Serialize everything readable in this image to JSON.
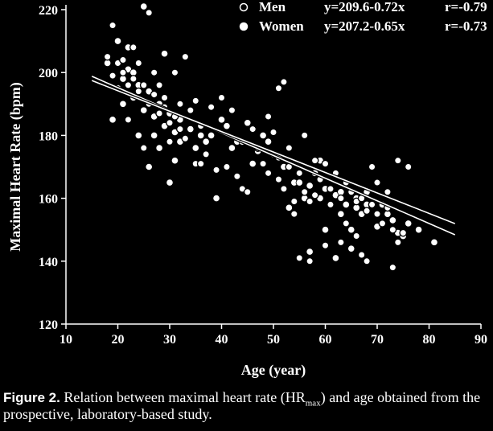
{
  "chart_data": {
    "type": "scatter",
    "xlabel": "Age (year)",
    "ylabel": "Maximal Heart Rate (bpm)",
    "xlim": [
      10,
      90
    ],
    "ylim": [
      120,
      220
    ],
    "xticks": [
      "10",
      "20",
      "30",
      "40",
      "50",
      "60",
      "70",
      "80",
      "90"
    ],
    "yticks": [
      "120",
      "140",
      "160",
      "180",
      "200",
      "220"
    ],
    "grid": false,
    "legend_position": "top-right",
    "legend": [
      {
        "name": "Men",
        "marker": "open-circle",
        "equation": "y=209.6-0.72x",
        "r": "r=-0.79"
      },
      {
        "name": "Women",
        "marker": "filled-circle",
        "equation": "y=207.2-0.65x",
        "r": "r=-0.73"
      }
    ],
    "regression_lines": [
      {
        "series": "Men",
        "intercept": 209.6,
        "slope": -0.72,
        "x_range": [
          15,
          85
        ]
      },
      {
        "series": "Women",
        "intercept": 207.2,
        "slope": -0.65,
        "x_range": [
          15,
          85
        ]
      }
    ],
    "series": [
      {
        "name": "Men",
        "points": [
          [
            18,
            205
          ],
          [
            19,
            199
          ],
          [
            20,
            203
          ],
          [
            21,
            200
          ],
          [
            22,
            196
          ],
          [
            23,
            198
          ],
          [
            24,
            194
          ],
          [
            25,
            196
          ],
          [
            26,
            190
          ],
          [
            26,
            219
          ],
          [
            27,
            193
          ],
          [
            28,
            187
          ],
          [
            29,
            189
          ],
          [
            30,
            184
          ],
          [
            31,
            186
          ],
          [
            32,
            182
          ],
          [
            19,
            215
          ],
          [
            24,
            203
          ],
          [
            33,
            205
          ],
          [
            34,
            188
          ],
          [
            35,
            191
          ],
          [
            36,
            183
          ],
          [
            38,
            189
          ],
          [
            40,
            192
          ],
          [
            42,
            188
          ],
          [
            44,
            163
          ],
          [
            45,
            162
          ],
          [
            47,
            176
          ],
          [
            48,
            171
          ],
          [
            49,
            168
          ],
          [
            50,
            181
          ],
          [
            51,
            166
          ],
          [
            52,
            163
          ],
          [
            53,
            170
          ],
          [
            54,
            159
          ],
          [
            55,
            168
          ],
          [
            56,
            162
          ],
          [
            57,
            159
          ],
          [
            58,
            172
          ],
          [
            59,
            166
          ],
          [
            60,
            171
          ],
          [
            61,
            163
          ],
          [
            62,
            168
          ],
          [
            63,
            160
          ],
          [
            64,
            165
          ],
          [
            65,
            162
          ],
          [
            66,
            159
          ],
          [
            67,
            160
          ],
          [
            67,
            142
          ],
          [
            68,
            156
          ],
          [
            69,
            158
          ],
          [
            70,
            155
          ],
          [
            71,
            152
          ],
          [
            72,
            157
          ],
          [
            73,
            150
          ],
          [
            73,
            138
          ],
          [
            74,
            146
          ],
          [
            75,
            149
          ],
          [
            55,
            141
          ],
          [
            57,
            140
          ],
          [
            60,
            145
          ],
          [
            63,
            146
          ],
          [
            68,
            140
          ],
          [
            54,
            155
          ],
          [
            53,
            176
          ],
          [
            51,
            195
          ],
          [
            52,
            197
          ],
          [
            49,
            186
          ],
          [
            46,
            182
          ],
          [
            41,
            170
          ],
          [
            39,
            169
          ],
          [
            37,
            174
          ],
          [
            35,
            171
          ],
          [
            33,
            179
          ],
          [
            29,
            192
          ],
          [
            27,
            200
          ],
          [
            23,
            208
          ],
          [
            21,
            204
          ],
          [
            22,
            185
          ],
          [
            25,
            176
          ],
          [
            28,
            196
          ],
          [
            30,
            178
          ],
          [
            32,
            190
          ],
          [
            31,
            200
          ],
          [
            36,
            171
          ],
          [
            43,
            167
          ],
          [
            56,
            180
          ],
          [
            58,
            161
          ],
          [
            61,
            158
          ],
          [
            64,
            152
          ],
          [
            66,
            148
          ],
          [
            69,
            170
          ],
          [
            70,
            165
          ],
          [
            72,
            162
          ],
          [
            74,
            172
          ],
          [
            76,
            170
          ]
        ]
      },
      {
        "name": "Women",
        "points": [
          [
            18,
            203
          ],
          [
            20,
            210
          ],
          [
            21,
            198
          ],
          [
            22,
            201
          ],
          [
            23,
            192
          ],
          [
            24,
            196
          ],
          [
            25,
            188
          ],
          [
            26,
            194
          ],
          [
            27,
            186
          ],
          [
            28,
            190
          ],
          [
            29,
            183
          ],
          [
            30,
            187
          ],
          [
            31,
            181
          ],
          [
            32,
            185
          ],
          [
            33,
            179
          ],
          [
            25,
            221
          ],
          [
            21,
            190
          ],
          [
            24,
            180
          ],
          [
            26,
            170
          ],
          [
            28,
            176
          ],
          [
            29,
            206
          ],
          [
            34,
            182
          ],
          [
            37,
            178
          ],
          [
            39,
            160
          ],
          [
            40,
            185
          ],
          [
            43,
            178
          ],
          [
            46,
            171
          ],
          [
            48,
            180
          ],
          [
            50,
            174
          ],
          [
            52,
            170
          ],
          [
            54,
            165
          ],
          [
            56,
            160
          ],
          [
            58,
            168
          ],
          [
            59,
            172
          ],
          [
            60,
            163
          ],
          [
            61,
            158
          ],
          [
            62,
            161
          ],
          [
            63,
            155
          ],
          [
            64,
            158
          ],
          [
            65,
            150
          ],
          [
            66,
            160
          ],
          [
            67,
            155
          ],
          [
            68,
            158
          ],
          [
            70,
            151
          ],
          [
            72,
            155
          ],
          [
            74,
            149
          ],
          [
            76,
            152
          ],
          [
            78,
            150
          ],
          [
            81,
            146
          ],
          [
            57,
            143
          ],
          [
            60,
            150
          ],
          [
            62,
            141
          ],
          [
            65,
            144
          ],
          [
            53,
            157
          ],
          [
            55,
            165
          ],
          [
            49,
            178
          ],
          [
            45,
            184
          ],
          [
            42,
            176
          ],
          [
            38,
            180
          ],
          [
            35,
            176
          ],
          [
            31,
            172
          ],
          [
            30,
            165
          ],
          [
            27,
            180
          ],
          [
            22,
            208
          ],
          [
            23,
            200
          ],
          [
            20,
            195
          ],
          [
            19,
            185
          ],
          [
            32,
            178
          ],
          [
            36,
            180
          ],
          [
            41,
            183
          ],
          [
            44,
            178
          ],
          [
            47,
            175
          ],
          [
            51,
            173
          ],
          [
            53,
            170
          ],
          [
            57,
            164
          ],
          [
            59,
            160
          ],
          [
            63,
            162
          ],
          [
            66,
            157
          ],
          [
            68,
            162
          ],
          [
            71,
            158
          ],
          [
            73,
            153
          ],
          [
            75,
            148
          ]
        ]
      }
    ]
  },
  "caption": {
    "label": "Figure 2.",
    "text_before_sub": "Relation between maximal heart rate (HR",
    "sub": "max",
    "text_after_sub": ") and age obtained from the prospective, laboratory-based study."
  }
}
